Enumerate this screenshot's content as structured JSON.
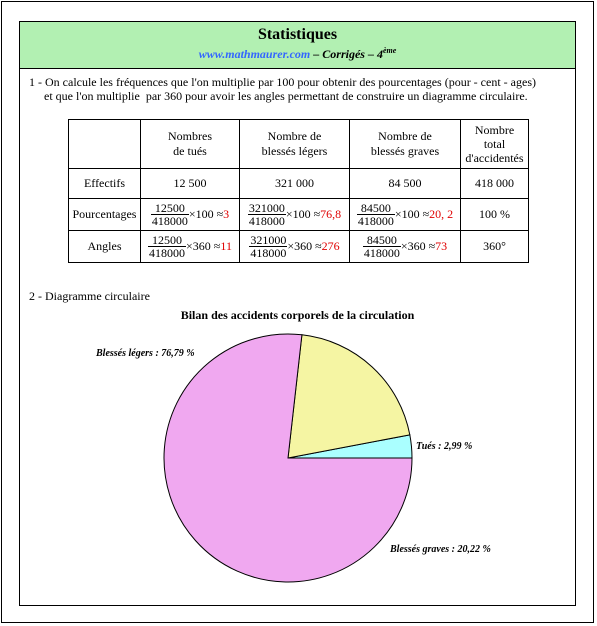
{
  "header": {
    "title": "Statistiques",
    "site": "www.mathmaurer.com",
    "separator1": " – ",
    "subtitle": "Corrigés",
    "separator2": " – 4",
    "grade_sup": "ème"
  },
  "section1": {
    "line1": "1 - On calcule les fréquences que l'on multiplie par 100 pour obtenir des pourcentages (pour - cent - ages)",
    "line2": "     et que l'on multiplie  par 360 pour avoir les angles permettant de construire un diagramme circulaire."
  },
  "table": {
    "headers": [
      {
        "line1": "Nombres",
        "line2": "de tués",
        "line3": ""
      },
      {
        "line1": "Nombre de",
        "line2": "blessés légers",
        "line3": ""
      },
      {
        "line1": "Nombre de",
        "line2": "blessés graves",
        "line3": ""
      },
      {
        "line1": "Nombre",
        "line2": "total",
        "line3": "d'accidentés"
      }
    ],
    "effectifs": {
      "label": "Effectifs",
      "values": [
        "12 500",
        "321 000",
        "84 500",
        "418 000"
      ]
    },
    "pourcentages": {
      "label": "Pourcentages",
      "cells": [
        {
          "num": "12500",
          "den": "418000",
          "op": "×100 ≈",
          "result": "3"
        },
        {
          "num": "321000",
          "den": "418000",
          "op": "×100 ≈",
          "result": "76,8"
        },
        {
          "num": "84500",
          "den": "418000",
          "op": "×100 ≈",
          "result": "20, 2"
        }
      ],
      "total": "100 %"
    },
    "angles": {
      "label": "Angles",
      "cells": [
        {
          "num": "12500",
          "den": "418000",
          "op": "×360 ≈",
          "result": "11"
        },
        {
          "num": "321000",
          "den": "418000",
          "op": "×360 ≈",
          "result": "276"
        },
        {
          "num": "84500",
          "den": "418000",
          "op": "×360 ≈",
          "result": "73"
        }
      ],
      "total": "360°"
    }
  },
  "section2": {
    "label": "2 - Diagramme circulaire"
  },
  "chart_data": {
    "type": "pie",
    "title": "Bilan des accidents corporels de la circulation",
    "slices": [
      {
        "label": "Tués : 2,99 %",
        "value": 2.99,
        "color": "#aaffff"
      },
      {
        "label": "Blessés graves : 20,22 %",
        "value": 20.22,
        "color": "#f5f5a3"
      },
      {
        "label": "Blessés légers : 76,79 %",
        "value": 76.79,
        "color": "#f0a8f0"
      }
    ],
    "start_direction": "east",
    "order": "counterclockwise"
  }
}
